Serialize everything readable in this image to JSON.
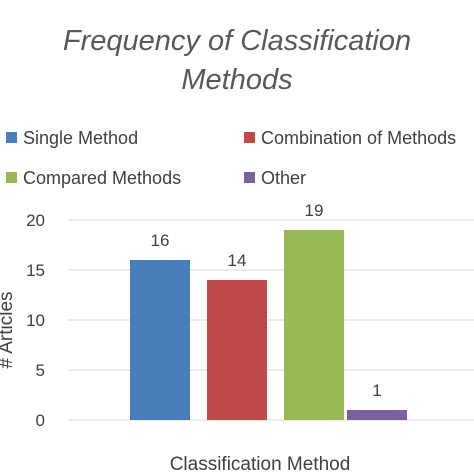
{
  "chart_data": {
    "type": "bar",
    "title_lines": [
      "Frequency of Classification",
      "Methods"
    ],
    "categories": [
      "Single Method",
      "Combination of Methods",
      "Compared Methods",
      "Other"
    ],
    "values": [
      16,
      14,
      19,
      1
    ],
    "colors": [
      "#4a7ebb",
      "#be4b48",
      "#98b954",
      "#7d60a0"
    ],
    "xlabel": "Classification Method",
    "ylabel": "# Articles",
    "ylim": [
      0,
      20
    ],
    "yticks": [
      "0",
      "5",
      "10",
      "15",
      "20"
    ],
    "grid": true,
    "legend_position": "top"
  }
}
